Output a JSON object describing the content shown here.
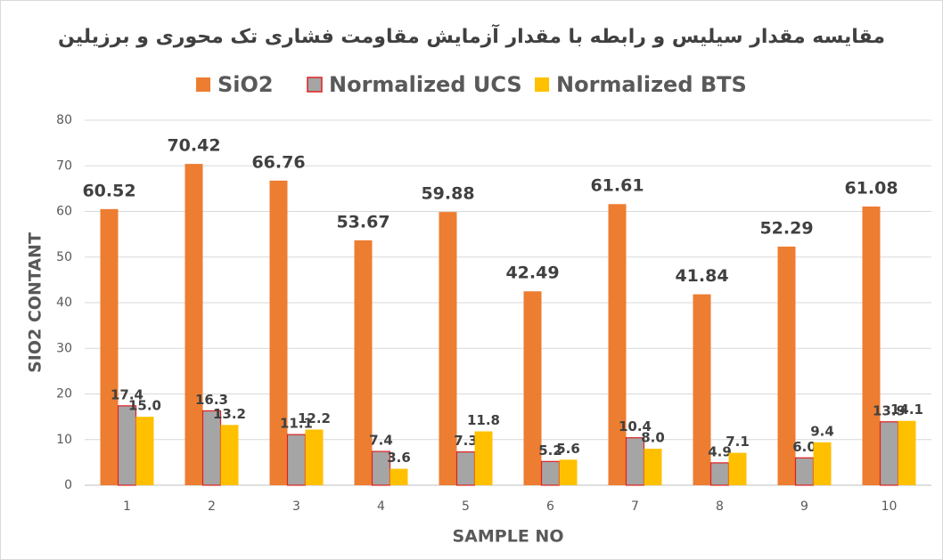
{
  "chart_data": {
    "type": "bar",
    "title": "مقایسه مقدار سیلیس و رابطه با مقدار آزمایش مقاومت فشاری تک محوری و برزیلین",
    "x_label": "SAMPLE NO",
    "y_label": "SIO2 CONTANT",
    "categories": [
      "1",
      "2",
      "3",
      "4",
      "5",
      "6",
      "7",
      "8",
      "9",
      "10"
    ],
    "series": [
      {
        "name": "SiO2",
        "color": "#ED7D31",
        "values": [
          60.52,
          70.42,
          66.76,
          53.67,
          59.88,
          42.49,
          61.61,
          41.84,
          52.29,
          61.08
        ]
      },
      {
        "name": "Normalized UCS",
        "color": "#A5A5A5",
        "edge_color": "#E02020",
        "values": [
          17.4,
          16.3,
          11.1,
          7.4,
          7.3,
          5.2,
          10.4,
          4.9,
          6,
          13.9
        ],
        "value_labels": [
          "17.4",
          "16.3",
          "11.1",
          "7.4",
          "7.3",
          "5.2",
          "10.4",
          "4.9",
          "6.0",
          "13.9"
        ]
      },
      {
        "name": "Normalized BTS",
        "color": "#FFC000",
        "values": [
          15,
          13.2,
          12.2,
          3.6,
          11.8,
          5.6,
          8,
          7.1,
          9.4,
          14.1
        ],
        "value_labels": [
          "15.0",
          "13.2",
          "12.2",
          "3.6",
          "11.8",
          "5.6",
          "8.0",
          "7.1",
          "9.4",
          "14.1"
        ]
      }
    ],
    "ylim": [
      0,
      80
    ],
    "yticks": [
      0,
      10,
      20,
      30,
      40,
      50,
      60,
      70,
      80
    ],
    "grid": true,
    "legend": "top"
  }
}
